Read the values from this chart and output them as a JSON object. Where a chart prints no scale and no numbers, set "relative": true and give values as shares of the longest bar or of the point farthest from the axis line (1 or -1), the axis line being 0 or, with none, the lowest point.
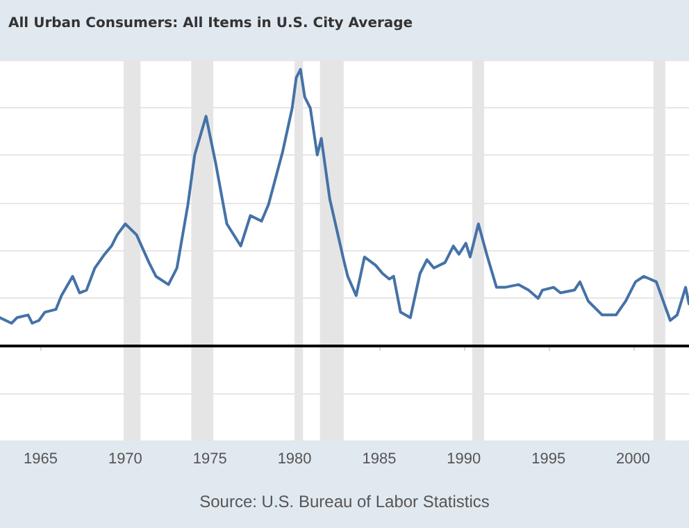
{
  "chart_data": {
    "type": "line",
    "title": "All Urban Consumers: All Items in U.S. City Average",
    "relative": true,
    "grid": "y",
    "marker": "none",
    "line_style": "solid",
    "xlim": [
      1962.6,
      2003.3
    ],
    "xticks": [
      1965,
      1970,
      1975,
      1980,
      1985,
      1990,
      1995,
      2000
    ],
    "annotations": [
      "Source: U.S. Bureau of Labor Statistics"
    ],
    "bands": [
      {
        "axis": "x",
        "from": 1969.9,
        "to": 1970.9,
        "color": "#e5e5e5"
      },
      {
        "axis": "x",
        "from": 1973.9,
        "to": 1975.2,
        "color": "#e5e5e5"
      },
      {
        "axis": "x",
        "from": 1980.0,
        "to": 1980.5,
        "color": "#e5e5e5"
      },
      {
        "axis": "x",
        "from": 1981.5,
        "to": 1982.9,
        "color": "#e5e5e5"
      },
      {
        "axis": "x",
        "from": 1990.5,
        "to": 1991.2,
        "color": "#e5e5e5"
      },
      {
        "axis": "x",
        "from": 2001.2,
        "to": 2001.9,
        "color": "#e5e5e5"
      }
    ],
    "series": [
      {
        "color": "#4572a7",
        "x": [
          1962.6,
          1963.28,
          1963.6,
          1964.26,
          1964.5,
          1964.9,
          1965.25,
          1965.9,
          1966.23,
          1966.89,
          1967.3,
          1967.71,
          1968.2,
          1968.78,
          1969.19,
          1969.52,
          1970.0,
          1970.67,
          1971.4,
          1971.81,
          1972.55,
          1973.05,
          1973.7,
          1974.1,
          1974.77,
          1975.34,
          1976.0,
          1976.82,
          1977.39,
          1978.05,
          1978.46,
          1979.29,
          1979.86,
          1980.1,
          1980.35,
          1980.6,
          1980.93,
          1981.34,
          1981.58,
          1982.08,
          1982.9,
          1983.14,
          1983.64,
          1984.13,
          1984.79,
          1985.2,
          1985.6,
          1985.85,
          1986.26,
          1986.84,
          1987.41,
          1987.82,
          1988.23,
          1988.89,
          1989.38,
          1989.71,
          1990.12,
          1990.37,
          1990.86,
          1991.35,
          1991.93,
          1992.42,
          1993.24,
          1993.82,
          1994.39,
          1994.64,
          1995.3,
          1995.71,
          1996.53,
          1996.86,
          1997.35,
          1998.17,
          1998.99,
          1999.56,
          2000.14,
          2000.63,
          2001.37,
          2002.19,
          2002.6,
          2003.1,
          2003.3
        ],
        "values": [
          0.1,
          0.08,
          0.1,
          0.11,
          0.08,
          0.09,
          0.12,
          0.13,
          0.18,
          0.25,
          0.19,
          0.2,
          0.28,
          0.33,
          0.36,
          0.4,
          0.44,
          0.4,
          0.3,
          0.25,
          0.22,
          0.28,
          0.51,
          0.69,
          0.83,
          0.66,
          0.44,
          0.36,
          0.47,
          0.45,
          0.51,
          0.7,
          0.86,
          0.97,
          1,
          0.9,
          0.86,
          0.69,
          0.75,
          0.53,
          0.31,
          0.25,
          0.18,
          0.32,
          0.29,
          0.26,
          0.24,
          0.25,
          0.12,
          0.1,
          0.26,
          0.31,
          0.28,
          0.3,
          0.36,
          0.33,
          0.37,
          0.32,
          0.44,
          0.33,
          0.21,
          0.21,
          0.22,
          0.2,
          0.17,
          0.2,
          0.21,
          0.19,
          0.2,
          0.23,
          0.16,
          0.11,
          0.11,
          0.16,
          0.23,
          0.25,
          0.23,
          0.09,
          0.11,
          0.21,
          0.15
        ]
      }
    ]
  }
}
